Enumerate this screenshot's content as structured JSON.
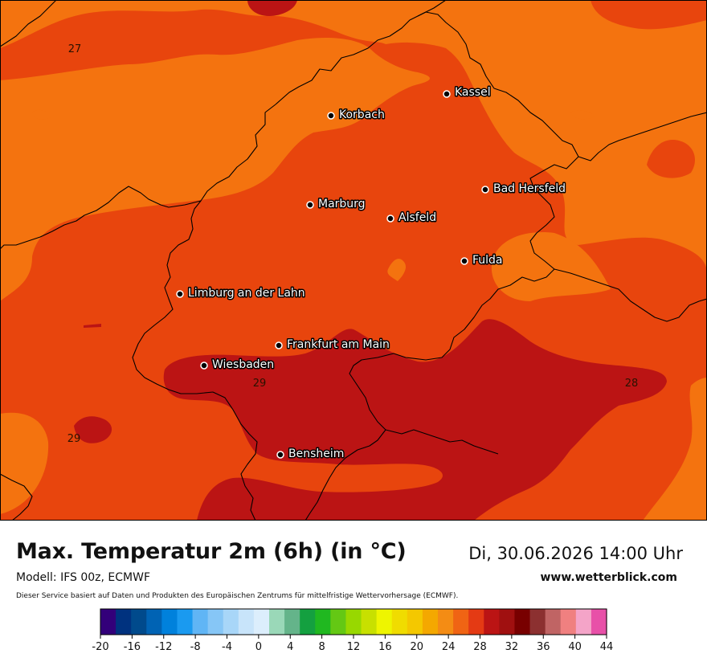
{
  "header": {
    "title": "Max. Temperatur 2m (6h) (in °C)",
    "datetime": "Di, 30.06.2026 14:00 Uhr",
    "model": "Modell: IFS 00z, ECMWF",
    "website": "www.wetterblick.com",
    "disclaimer": "Dieser Service basiert auf Daten und Produkten des Europäischen Zentrums für mittelfristige Wettervorhersage (ECMWF)."
  },
  "map": {
    "colors": {
      "t26": "#f4730f",
      "t28": "#e8450d",
      "t30": "#bb1414",
      "border": "#000000",
      "city_dot": "#000000"
    },
    "cities": [
      "Kassel",
      "Korbach",
      "Bad Hersfeld",
      "Marburg",
      "Alsfeld",
      "Fulda",
      "Limburg an der Lahn",
      "Frankfurt am Main",
      "Wiesbaden",
      "Bensheim"
    ],
    "isoline_labels": [
      "27",
      "29",
      "28",
      "29"
    ]
  },
  "legend": {
    "ticks": [
      "-20",
      "-16",
      "-12",
      "-8",
      "-4",
      "0",
      "4",
      "8",
      "12",
      "16",
      "20",
      "24",
      "28",
      "32",
      "36",
      "40",
      "44"
    ],
    "colors": [
      "#33007a",
      "#00327f",
      "#004a8c",
      "#0063b4",
      "#0081dc",
      "#1a9af0",
      "#60b5f5",
      "#86c6f6",
      "#a8d6f8",
      "#c8e4fa",
      "#dceefc",
      "#9ad8b8",
      "#64b48a",
      "#14a040",
      "#20b820",
      "#64c814",
      "#98d800",
      "#c8e000",
      "#eef500",
      "#f0dc00",
      "#f4c800",
      "#f4a800",
      "#f48c14",
      "#f06414",
      "#e43a14",
      "#bb1414",
      "#a01010",
      "#780000",
      "#8c3030",
      "#c06464",
      "#f08080",
      "#f4a4c8",
      "#e850a8"
    ]
  }
}
